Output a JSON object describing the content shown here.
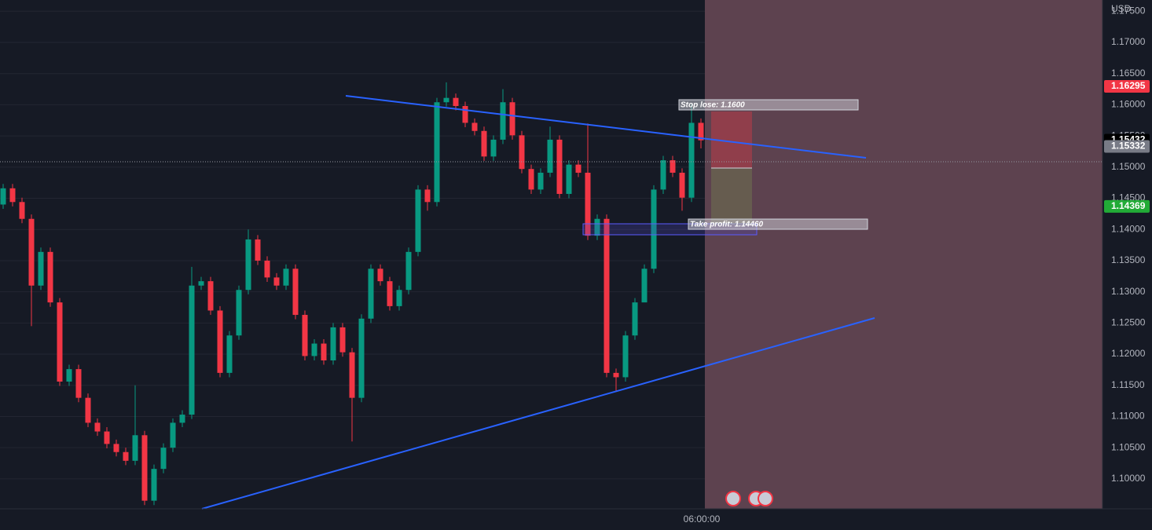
{
  "chart_data": {
    "type": "candlestick",
    "currency": "USD",
    "time_label": "06:00:00",
    "up_color": "#089981",
    "down_color": "#f23645",
    "ylim": [
      1.0952,
      1.1768
    ],
    "yticks": [
      {
        "value": 1.175,
        "label": "1.17500"
      },
      {
        "value": 1.17,
        "label": "1.17000"
      },
      {
        "value": 1.165,
        "label": "1.16500"
      },
      {
        "value": 1.16,
        "label": "1.16000"
      },
      {
        "value": 1.155,
        "label": "1.15500"
      },
      {
        "value": 1.15,
        "label": "1.15000"
      },
      {
        "value": 1.145,
        "label": "1.14500"
      },
      {
        "value": 1.14,
        "label": "1.14000"
      },
      {
        "value": 1.135,
        "label": "1.13500"
      },
      {
        "value": 1.13,
        "label": "1.13000"
      },
      {
        "value": 1.125,
        "label": "1.12500"
      },
      {
        "value": 1.12,
        "label": "1.12000"
      },
      {
        "value": 1.115,
        "label": "1.11500"
      },
      {
        "value": 1.11,
        "label": "1.11000"
      },
      {
        "value": 1.105,
        "label": "1.10500"
      },
      {
        "value": 1.1,
        "label": "1.10000"
      }
    ],
    "grid": true,
    "price_labels": [
      {
        "value": 1.16295,
        "color": "#f23645"
      },
      {
        "value": 1.15432,
        "color": "#000000"
      },
      {
        "value": 1.15332,
        "color": "#787b86"
      },
      {
        "value": 1.14369,
        "color": "#22ab37"
      }
    ],
    "annotations": {
      "stop_loss": "Stop lose: 1.1600",
      "take_profit": "Take profit: 1.14460"
    },
    "open": [
      1.144,
      1.1466,
      1.1444,
      1.1417,
      1.131,
      1.1364,
      1.1283,
      1.1156,
      1.1176,
      1.113,
      1.109,
      1.1076,
      1.1056,
      1.1043,
      1.1029,
      1.107,
      1.0965,
      1.1016,
      1.105,
      1.109,
      1.1103,
      1.131,
      1.1317,
      1.127,
      1.117,
      1.123,
      1.1303,
      1.1384,
      1.135,
      1.1323,
      1.131,
      1.1337,
      1.1263,
      1.1197,
      1.1217,
      1.119,
      1.1243,
      1.1203,
      1.113,
      1.1257,
      1.1337,
      1.1317,
      1.1277,
      1.1303,
      1.1364,
      1.1464,
      1.1444,
      1.1604,
      1.1611,
      1.1598,
      1.1571,
      1.1558,
      1.1517,
      1.1544,
      1.1604,
      1.1551,
      1.1497,
      1.1464,
      1.1491,
      1.1544,
      1.1457,
      1.1504,
      1.1491,
      1.139,
      1.1417,
      1.117,
      1.1163,
      1.123,
      1.1283,
      1.1337,
      1.1464,
      1.1511,
      1.1491,
      1.1451,
      1.1571
    ],
    "high": [
      1.1473,
      1.1473,
      1.1451,
      1.1424,
      1.1371,
      1.1371,
      1.129,
      1.1183,
      1.1183,
      1.1137,
      1.1097,
      1.1083,
      1.1063,
      1.105,
      1.115,
      1.1077,
      1.1023,
      1.1057,
      1.1097,
      1.111,
      1.134,
      1.1324,
      1.1324,
      1.1277,
      1.1237,
      1.131,
      1.14,
      1.1391,
      1.1357,
      1.133,
      1.1344,
      1.1344,
      1.127,
      1.1224,
      1.1224,
      1.125,
      1.125,
      1.121,
      1.1264,
      1.1344,
      1.1344,
      1.1324,
      1.131,
      1.1371,
      1.1471,
      1.1471,
      1.1611,
      1.1636,
      1.1618,
      1.1605,
      1.1578,
      1.1565,
      1.1551,
      1.1625,
      1.1611,
      1.1558,
      1.1504,
      1.1498,
      1.1565,
      1.1551,
      1.1511,
      1.1511,
      1.157,
      1.1424,
      1.1424,
      1.1177,
      1.1237,
      1.129,
      1.1344,
      1.1471,
      1.1518,
      1.1518,
      1.1498,
      1.16,
      1.1578
    ],
    "low": [
      1.1433,
      1.1437,
      1.141,
      1.1245,
      1.1303,
      1.1276,
      1.1149,
      1.1149,
      1.1123,
      1.1083,
      1.1069,
      1.1049,
      1.1036,
      1.1022,
      1.1022,
      1.0958,
      1.0958,
      1.1009,
      1.1043,
      1.1083,
      1.1096,
      1.1303,
      1.1263,
      1.1163,
      1.1163,
      1.1223,
      1.1296,
      1.1343,
      1.1316,
      1.1303,
      1.1303,
      1.1256,
      1.119,
      1.119,
      1.1183,
      1.1183,
      1.1196,
      1.106,
      1.1123,
      1.125,
      1.131,
      1.127,
      1.127,
      1.1296,
      1.1357,
      1.143,
      1.1437,
      1.1597,
      1.1591,
      1.1564,
      1.1551,
      1.151,
      1.151,
      1.1537,
      1.1544,
      1.149,
      1.1457,
      1.1457,
      1.1484,
      1.145,
      1.145,
      1.1484,
      1.1383,
      1.1383,
      1.1163,
      1.114,
      1.1156,
      1.1223,
      1.129,
      1.133,
      1.1457,
      1.1484,
      1.143,
      1.1444,
      1.153
    ],
    "close": [
      1.1466,
      1.1444,
      1.1417,
      1.131,
      1.1364,
      1.1283,
      1.1156,
      1.1176,
      1.113,
      1.109,
      1.1076,
      1.1056,
      1.1043,
      1.1029,
      1.107,
      1.0965,
      1.1016,
      1.105,
      1.109,
      1.1103,
      1.131,
      1.1317,
      1.127,
      1.117,
      1.123,
      1.1303,
      1.1384,
      1.135,
      1.1323,
      1.131,
      1.1337,
      1.1263,
      1.1197,
      1.1217,
      1.119,
      1.1243,
      1.1203,
      1.113,
      1.1257,
      1.1337,
      1.1317,
      1.1277,
      1.1303,
      1.1364,
      1.1464,
      1.1444,
      1.1604,
      1.1611,
      1.1598,
      1.1571,
      1.1558,
      1.1517,
      1.1544,
      1.1604,
      1.1551,
      1.1497,
      1.1464,
      1.1491,
      1.1544,
      1.1457,
      1.1504,
      1.1491,
      1.139,
      1.1417,
      1.117,
      1.1163,
      1.123,
      1.1283,
      1.1337,
      1.1464,
      1.1511,
      1.1491,
      1.1451,
      1.1571,
      1.1543
    ]
  }
}
